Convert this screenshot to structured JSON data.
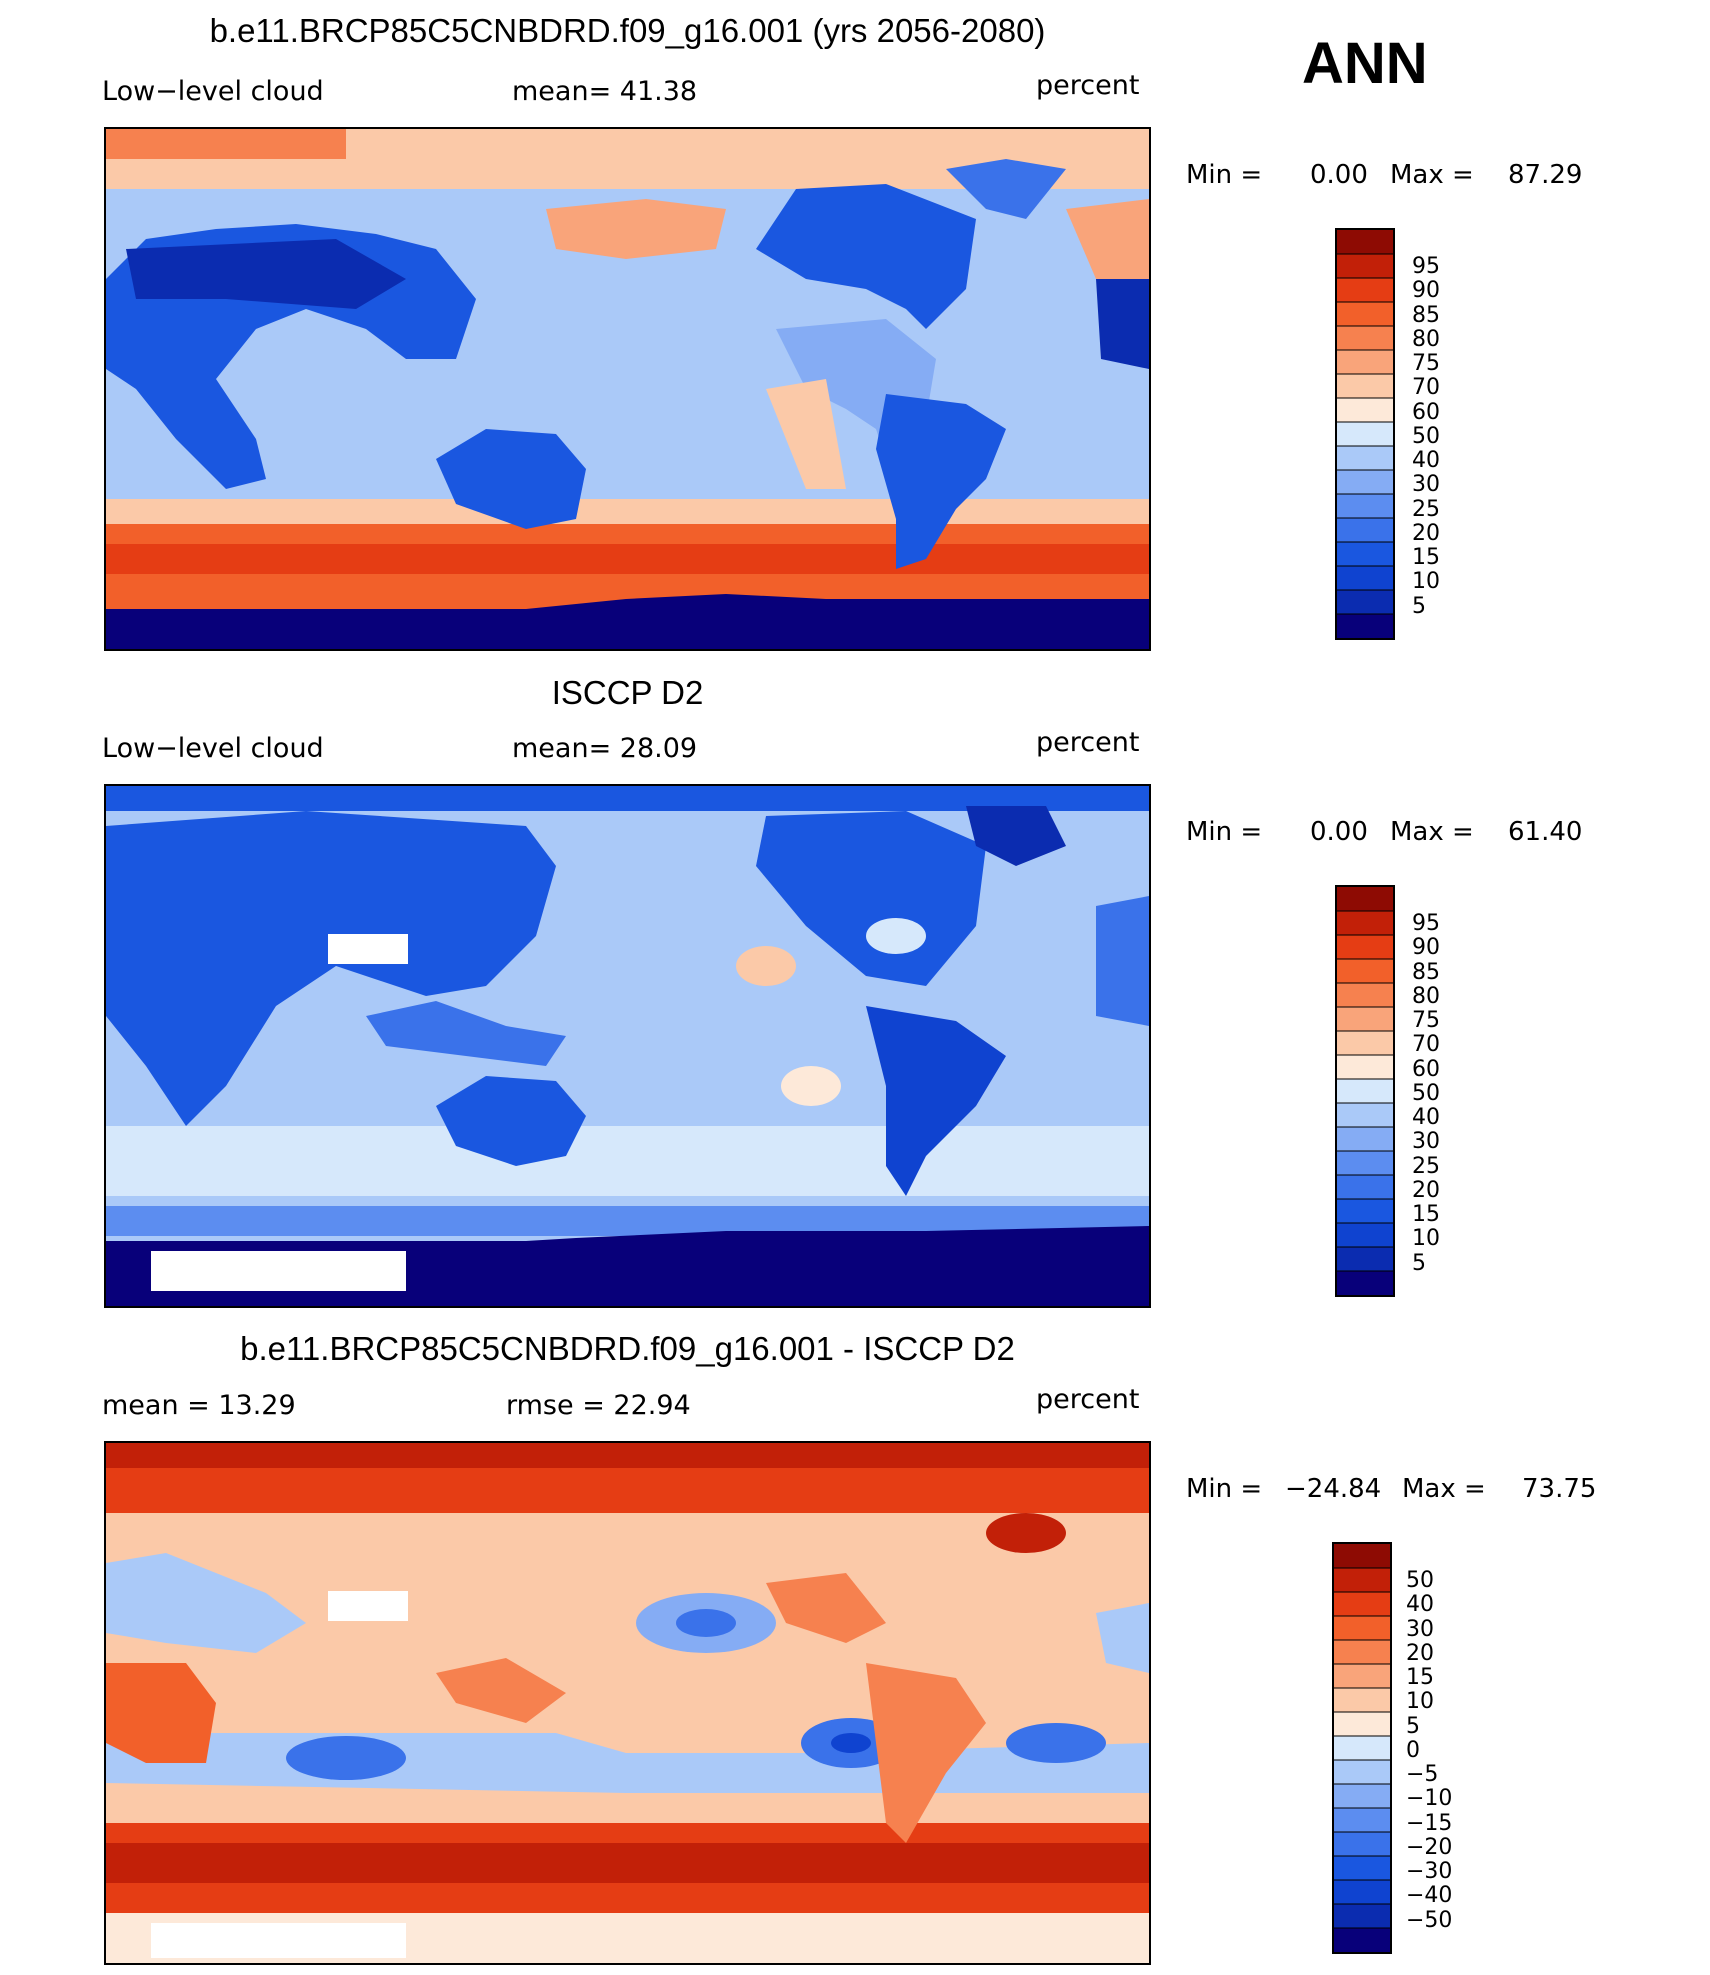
{
  "season": "ANN",
  "colors": {
    "abs": [
      "#08007a",
      "#0b2cb0",
      "#0f43d0",
      "#1a57e0",
      "#3a72ea",
      "#5c8df0",
      "#85acf4",
      "#aac9f8",
      "#d6e8fb",
      "#fde9d9",
      "#fbc9a8",
      "#f9a47a",
      "#f6814f",
      "#f2602a",
      "#e53d14",
      "#c22008",
      "#8e0b03"
    ],
    "diff": [
      "#08007a",
      "#0b2cb0",
      "#0f43d0",
      "#1a57e0",
      "#3a72ea",
      "#5c8df0",
      "#85acf4",
      "#aac9f8",
      "#d6e8fb",
      "#fde9d9",
      "#fbc9a8",
      "#f9a47a",
      "#f6814f",
      "#f2602a",
      "#e53d14",
      "#c22008",
      "#8e0b03"
    ]
  },
  "chart_data": [
    {
      "type": "heatmap",
      "title": "b.e11.BRCP85C5CNBDRD.f09_g16.001 (yrs 2056-2080)",
      "left_label": "Low−level cloud",
      "center_label": "mean=   41.38",
      "units": "percent",
      "mean": 41.38,
      "min_label": "Min =",
      "min": "0.00",
      "max_label": "Max =",
      "max": "87.29",
      "colorbar_levels": [
        "95",
        "90",
        "85",
        "80",
        "75",
        "70",
        "60",
        "50",
        "40",
        "30",
        "25",
        "20",
        "15",
        "10",
        "5"
      ]
    },
    {
      "type": "heatmap",
      "title": "ISCCP D2",
      "left_label": "Low−level cloud",
      "center_label": "mean=   28.09",
      "units": "percent",
      "mean": 28.09,
      "min_label": "Min =",
      "min": "0.00",
      "max_label": "Max =",
      "max": "61.40",
      "colorbar_levels": [
        "95",
        "90",
        "85",
        "80",
        "75",
        "70",
        "60",
        "50",
        "40",
        "30",
        "25",
        "20",
        "15",
        "10",
        "5"
      ]
    },
    {
      "type": "heatmap",
      "title": "b.e11.BRCP85C5CNBDRD.f09_g16.001 - ISCCP D2",
      "left_label": "mean =   13.29",
      "center_label": "rmse =   22.94",
      "units": "percent",
      "mean": 13.29,
      "rmse": 22.94,
      "min_label": "Min =",
      "min": "−24.84",
      "max_label": "Max =",
      "max": "73.75",
      "colorbar_levels": [
        "50",
        "40",
        "30",
        "20",
        "15",
        "10",
        "5",
        "0",
        "−5",
        "−10",
        "−15",
        "−20",
        "−30",
        "−40",
        "−50"
      ]
    }
  ]
}
